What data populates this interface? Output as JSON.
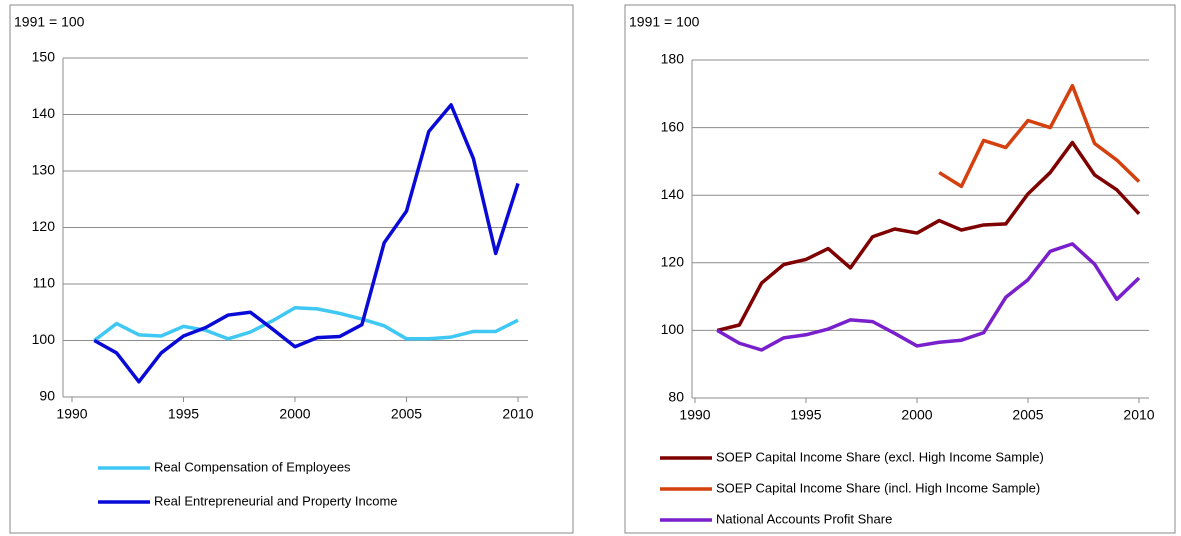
{
  "chart_data": [
    {
      "type": "line",
      "subtitle": "1991 = 100",
      "x": [
        1991,
        1992,
        1993,
        1994,
        1995,
        1996,
        1997,
        1998,
        1999,
        2000,
        2001,
        2002,
        2003,
        2004,
        2005,
        2006,
        2007,
        2008,
        2009,
        2010
      ],
      "series": [
        {
          "name": "Real Compensation of Employees",
          "color": "#3fc8f4",
          "values": [
            100,
            103,
            101,
            100.8,
            102.5,
            101.8,
            100.3,
            101.5,
            103.5,
            105.8,
            105.6,
            104.8,
            103.8,
            102.6,
            100.3,
            100.3,
            100.6,
            101.6,
            101.6,
            103.6
          ]
        },
        {
          "name": "Real Entrepreneurial and Property Income",
          "color": "#0a0ad8",
          "values": [
            100,
            97.8,
            92.7,
            97.8,
            100.8,
            102.3,
            104.5,
            105,
            102,
            98.9,
            100.5,
            100.7,
            102.8,
            117.3,
            122.9,
            137,
            141.7,
            132.2,
            115.4,
            127.8
          ]
        }
      ],
      "xlim": [
        1990,
        2010
      ],
      "xticks": [
        1990,
        1995,
        2000,
        2005,
        2010
      ],
      "ylim": [
        90,
        150
      ],
      "yticks": [
        90,
        100,
        110,
        120,
        130,
        140,
        150
      ],
      "grid": true
    },
    {
      "type": "line",
      "subtitle": "1991 = 100",
      "x": [
        1991,
        1992,
        1993,
        1994,
        1995,
        1996,
        1997,
        1998,
        1999,
        2000,
        2001,
        2002,
        2003,
        2004,
        2005,
        2006,
        2007,
        2008,
        2009,
        2010
      ],
      "series": [
        {
          "name": "SOEP Capital Income Share (excl. High Income Sample)",
          "color": "#7f0000",
          "values": [
            100,
            101.6,
            114,
            119.5,
            121,
            124.2,
            118.5,
            127.7,
            130,
            128.8,
            132.5,
            129.7,
            131.2,
            131.5,
            140.4,
            146.7,
            155.6,
            146,
            141.6,
            134.5
          ]
        },
        {
          "name": "SOEP Capital Income Share (incl. High Income Sample)",
          "color": "#d4400e",
          "values": [
            null,
            null,
            null,
            null,
            null,
            null,
            null,
            null,
            null,
            null,
            146.7,
            142.6,
            156.2,
            154.1,
            162.1,
            160,
            172.4,
            155.3,
            150.4,
            144
          ]
        },
        {
          "name": "National Accounts Profit Share",
          "color": "#7a1fcc",
          "values": [
            100,
            96.2,
            94.2,
            97.8,
            98.7,
            100.4,
            103.1,
            102.6,
            99.1,
            95.4,
            96.5,
            97.1,
            99.3,
            109.8,
            115,
            123.4,
            125.6,
            119.6,
            109.2,
            115.5
          ]
        }
      ],
      "xlim": [
        1990,
        2010
      ],
      "xticks": [
        1990,
        1995,
        2000,
        2005,
        2010
      ],
      "ylim": [
        80,
        180
      ],
      "yticks": [
        80,
        100,
        120,
        140,
        160,
        180
      ],
      "grid": true
    }
  ]
}
